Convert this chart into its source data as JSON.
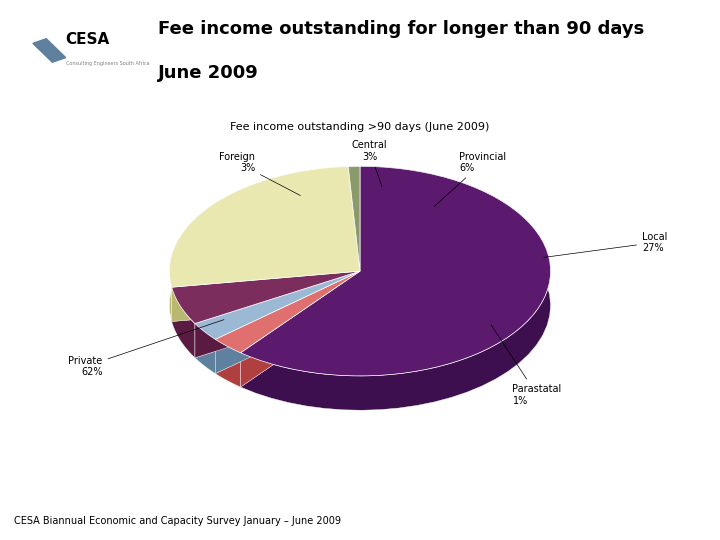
{
  "chart_title": "Fee income outstanding >90 days (June 2009)",
  "header_title1": "Fee income outstanding for longer than 90 days",
  "header_title2": "June 2009",
  "footer": "CESA Biannual Economic and Capacity Survey January – June 2009",
  "labels": [
    "Private",
    "Foreign",
    "Central",
    "Provincial",
    "Local",
    "Parastatal"
  ],
  "values": [
    62,
    3,
    3,
    6,
    27,
    1
  ],
  "colors_top": [
    "#5b1a6e",
    "#e07070",
    "#9bb8d4",
    "#7b2d5e",
    "#e8e8b0",
    "#8a9a6a"
  ],
  "colors_side": [
    "#3d0f4e",
    "#b04040",
    "#6080a0",
    "#5a1a42",
    "#b8b870",
    "#5a6a4a"
  ],
  "background_color": "#ffffff",
  "separator_color": "#999999",
  "title_fontsize": 8,
  "label_fontsize": 7,
  "header_fontsize": 13,
  "footer_fontsize": 7,
  "startangle": 90,
  "depth": 0.13
}
